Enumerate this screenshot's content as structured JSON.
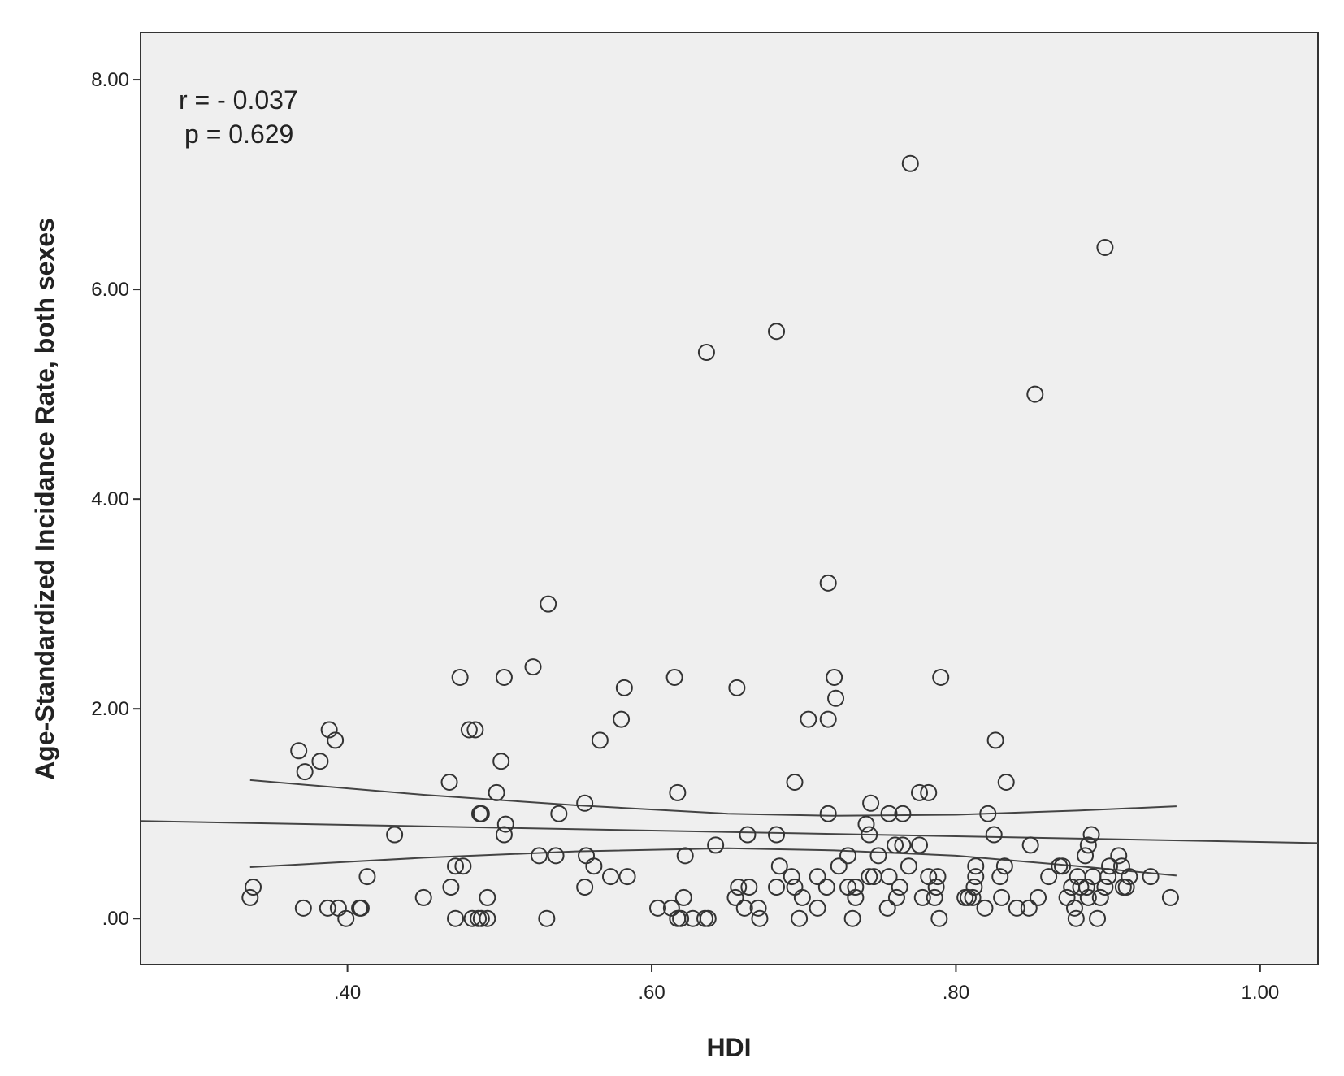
{
  "chart_data": {
    "type": "scatter",
    "x_label": "HDI",
    "y_label": "Age-Standardized Incidance Rate, both sexes",
    "annotations": [
      "r = - 0.037",
      "p = 0.629"
    ],
    "xlim": [
      0.264,
      1.038
    ],
    "ylim": [
      -0.44,
      8.45
    ],
    "xticks": [
      {
        "value": 0.4,
        "label": ".40"
      },
      {
        "value": 0.6,
        "label": ".60"
      },
      {
        "value": 0.8,
        "label": ".80"
      },
      {
        "value": 1.0,
        "label": "1.00"
      }
    ],
    "yticks": [
      {
        "value": 0,
        "label": ".00"
      },
      {
        "value": 2,
        "label": "2.00"
      },
      {
        "value": 4,
        "label": "4.00"
      },
      {
        "value": 6,
        "label": "6.00"
      },
      {
        "value": 8,
        "label": "8.00"
      }
    ],
    "marker_color": "#333333",
    "line_color": "#444444",
    "plot_background": "#efefef",
    "x": [
      0.336,
      0.338,
      0.368,
      0.372,
      0.371,
      0.382,
      0.388,
      0.392,
      0.387,
      0.394,
      0.399,
      0.408,
      0.409,
      0.413,
      0.431,
      0.45,
      0.467,
      0.468,
      0.471,
      0.471,
      0.474,
      0.476,
      0.48,
      0.484,
      0.482,
      0.486,
      0.488,
      0.492,
      0.487,
      0.488,
      0.492,
      0.498,
      0.501,
      0.503,
      0.503,
      0.504,
      0.522,
      0.526,
      0.531,
      0.532,
      0.537,
      0.539,
      0.556,
      0.556,
      0.557,
      0.562,
      0.566,
      0.573,
      0.58,
      0.582,
      0.584,
      0.604,
      0.613,
      0.615,
      0.617,
      0.617,
      0.619,
      0.621,
      0.622,
      0.627,
      0.635,
      0.637,
      0.636,
      0.642,
      0.656,
      0.655,
      0.657,
      0.661,
      0.663,
      0.664,
      0.67,
      0.671,
      0.682,
      0.682,
      0.682,
      0.684,
      0.692,
      0.694,
      0.694,
      0.697,
      0.699,
      0.703,
      0.709,
      0.709,
      0.715,
      0.716,
      0.716,
      0.716,
      0.72,
      0.721,
      0.723,
      0.729,
      0.729,
      0.732,
      0.734,
      0.734,
      0.741,
      0.743,
      0.744,
      0.743,
      0.746,
      0.749,
      0.755,
      0.756,
      0.756,
      0.76,
      0.761,
      0.763,
      0.765,
      0.765,
      0.769,
      0.77,
      0.776,
      0.776,
      0.778,
      0.782,
      0.782,
      0.786,
      0.787,
      0.788,
      0.789,
      0.79,
      0.806,
      0.808,
      0.811,
      0.812,
      0.813,
      0.813,
      0.819,
      0.821,
      0.825,
      0.826,
      0.829,
      0.83,
      0.832,
      0.833,
      0.84,
      0.848,
      0.849,
      0.852,
      0.854,
      0.861,
      0.868,
      0.87,
      0.873,
      0.876,
      0.878,
      0.879,
      0.88,
      0.882,
      0.885,
      0.886,
      0.887,
      0.887,
      0.889,
      0.89,
      0.893,
      0.895,
      0.898,
      0.898,
      0.9,
      0.901,
      0.907,
      0.909,
      0.91,
      0.912,
      0.914,
      0.928,
      0.941
    ],
    "y": [
      0.2,
      0.3,
      1.6,
      1.4,
      0.1,
      1.5,
      1.8,
      1.7,
      0.1,
      0.1,
      0.0,
      0.1,
      0.1,
      0.4,
      0.8,
      0.2,
      1.3,
      0.3,
      0.0,
      0.5,
      2.3,
      0.5,
      1.8,
      1.8,
      0.0,
      0.0,
      0.0,
      0.0,
      1.0,
      1.0,
      0.2,
      1.2,
      1.5,
      2.3,
      0.8,
      0.9,
      2.4,
      0.6,
      0.0,
      3.0,
      0.6,
      1.0,
      1.1,
      0.3,
      0.6,
      0.5,
      1.7,
      0.4,
      1.9,
      2.2,
      0.4,
      0.1,
      0.1,
      2.3,
      1.2,
      0.0,
      0.0,
      0.2,
      0.6,
      0.0,
      0.0,
      0.0,
      5.4,
      0.7,
      2.2,
      0.2,
      0.3,
      0.1,
      0.8,
      0.3,
      0.1,
      0.0,
      5.6,
      0.8,
      0.3,
      0.5,
      0.4,
      1.3,
      0.3,
      0.0,
      0.2,
      1.9,
      0.4,
      0.1,
      0.3,
      3.2,
      1.9,
      1.0,
      2.3,
      2.1,
      0.5,
      0.6,
      0.3,
      0.0,
      0.2,
      0.3,
      0.9,
      0.8,
      1.1,
      0.4,
      0.4,
      0.6,
      0.1,
      1.0,
      0.4,
      0.7,
      0.2,
      0.3,
      0.7,
      1.0,
      0.5,
      7.2,
      1.2,
      0.7,
      0.2,
      1.2,
      0.4,
      0.2,
      0.3,
      0.4,
      0.0,
      2.3,
      0.2,
      0.2,
      0.2,
      0.3,
      0.5,
      0.4,
      0.1,
      1.0,
      0.8,
      1.7,
      0.4,
      0.2,
      0.5,
      1.3,
      0.1,
      0.1,
      0.7,
      5.0,
      0.2,
      0.4,
      0.5,
      0.5,
      0.2,
      0.3,
      0.1,
      0.0,
      0.4,
      0.3,
      0.6,
      0.3,
      0.7,
      0.2,
      0.8,
      0.4,
      0.0,
      0.2,
      6.4,
      0.3,
      0.4,
      0.5,
      0.6,
      0.5,
      0.3,
      0.3,
      0.4,
      0.4,
      0.2
    ],
    "fit_lines": [
      {
        "x": [
          0.264,
          1.038
        ],
        "y": [
          0.93,
          0.72
        ]
      },
      {
        "x": [
          0.336,
          0.45,
          0.55,
          0.65,
          0.72,
          0.8,
          0.88,
          0.945
        ],
        "y": [
          1.32,
          1.18,
          1.08,
          1.0,
          0.98,
          0.99,
          1.03,
          1.07
        ]
      },
      {
        "x": [
          0.336,
          0.45,
          0.55,
          0.65,
          0.72,
          0.8,
          0.88,
          0.945
        ],
        "y": [
          0.49,
          0.58,
          0.64,
          0.67,
          0.65,
          0.6,
          0.5,
          0.41
        ]
      }
    ]
  }
}
